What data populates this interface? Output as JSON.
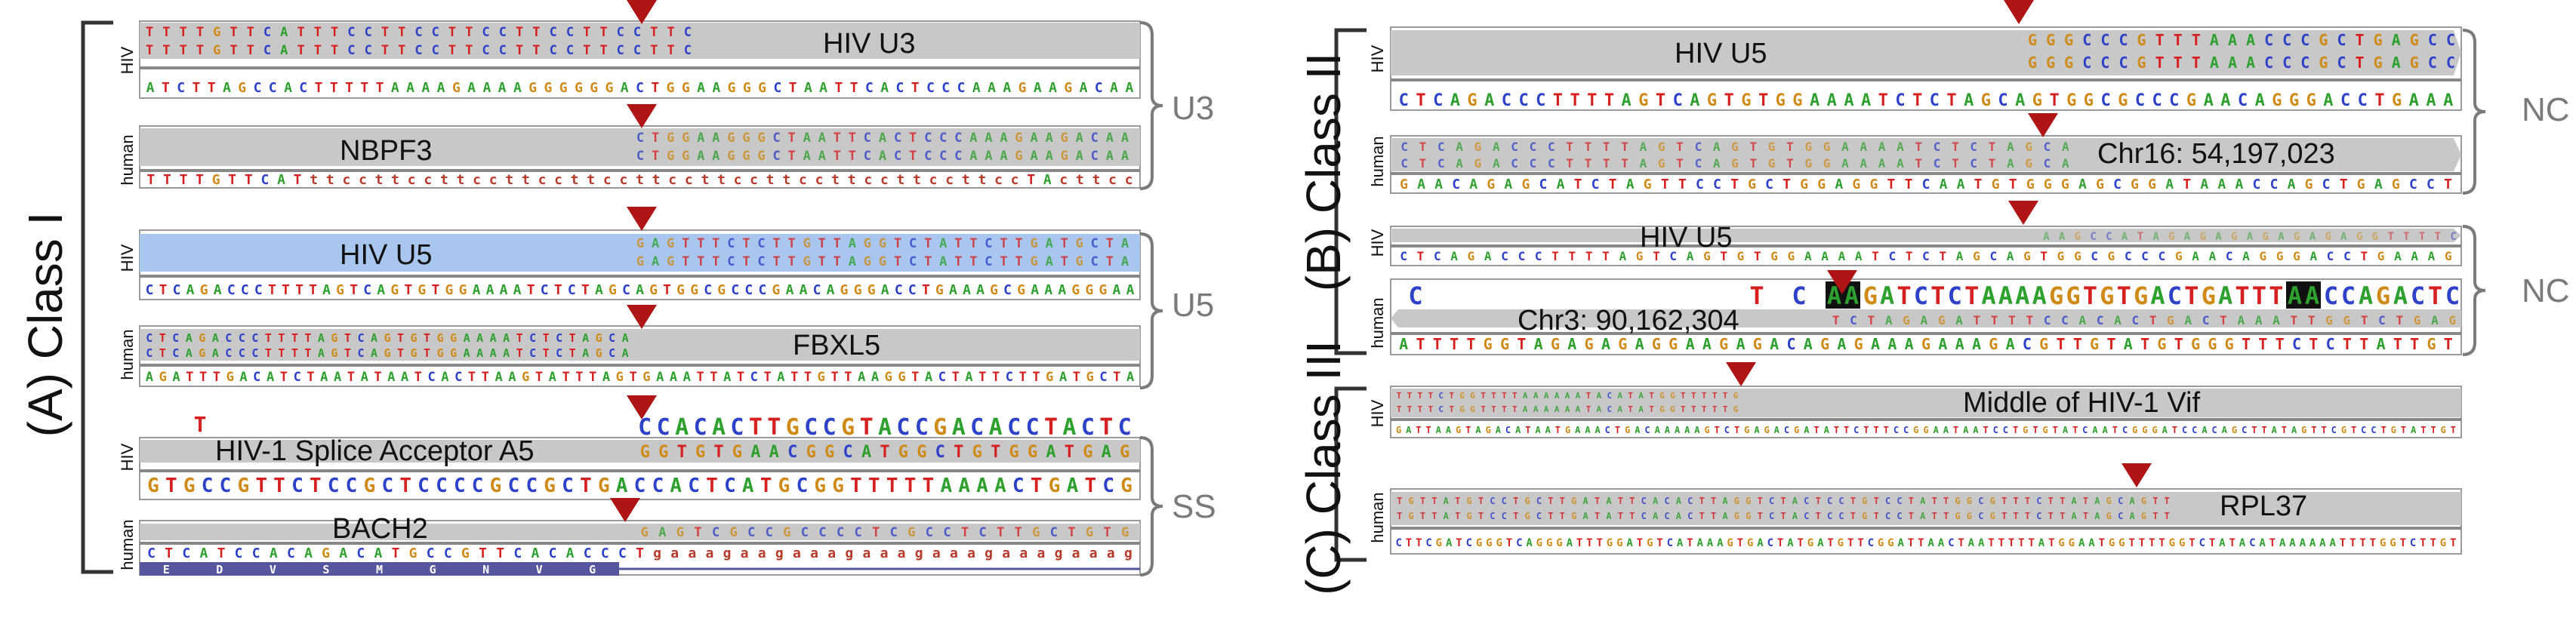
{
  "colors": {
    "A": "#2ea02e",
    "C": "#2d42c8",
    "G": "#d08a18",
    "T": "#d61f1f",
    "lower": "#b83a2a",
    "marker": "#b01515",
    "bracket": "#333333",
    "brace": "#7a7a7a",
    "band": "#c8c8c8",
    "band_blue": "#a9c6ef",
    "black_highlight": "#111111"
  },
  "sections": {
    "a": "(A) Class I",
    "b": "(B) Class II",
    "c": "(C) Class III"
  },
  "groups": {
    "u3": "U3",
    "u5": "U5",
    "ss": "SS",
    "nc1": "NC",
    "nc2": "NC"
  },
  "species": {
    "hiv": "HIV",
    "human": "human"
  },
  "panels": {
    "a1": {
      "label": "HIV U3",
      "read1": "TTTTGTTCATTTCCTTCCTTCCTTCCTTCCTTC",
      "read2": "TTTTGTTCATTTCCTTCCTTCCTTCCTTCCTTC",
      "ref": "ATCTTAGCCACTTTTTAAAAGAAAAGGGGGGACTGGAAGGGCTAATTCACTCCCAAAGAAGACAA"
    },
    "a2": {
      "label": "NBPF3",
      "read1": "CTGGAAGGGCTAATTCACTCCCAAAGAAGACAA",
      "read2": "CTGGAAGGGCTAATTCACTCCCAAAGAAGACAA",
      "ref": "TTTTGTTCATttccttccttccttccttccttccttccttccttccttccttccTActtcc"
    },
    "a3": {
      "label": "HIV U5",
      "read1": "GAGTTTCTCTTGTTAGGTCTATTCTTGATGCTA",
      "read2": "GAGTTTCTCTTGTTAGGTCTATTCTTGATGCTA",
      "ref": "CTCAGACCCTTTTAGTCAGTGTGGAAAATCTCTAGCAGTGGCGCCCGAACAGGGACCTGAAAGCGAAAGGGAA"
    },
    "a4": {
      "label": "FBXL5",
      "read1": "CTCAGACCCTTTTAGTCAGTGTGGAAAATCTCTAGCA",
      "read2": "CTCAGACCCTTTTAGTCAGTGTGGAAAATCTCTAGCA",
      "ref": "AGATTTGACATCTAATATAATCACTTAAGTATTTAGTGAAATTATCTATTGTTAAGGTACTATTCTTGATGCTA"
    },
    "a5": {
      "label": "HIV-1 Splice Acceptor A5",
      "insert": "T",
      "top": "CCACACTTGCCGTACCGACACCTACTC",
      "read": "GGTGTGAACGGCATGGCTGTGGATGAG",
      "ref": "GTGCCGTTCTCCGCTCCCCGCCGCTGACCACTCATGCGGTTTTTAAAACTGATCG"
    },
    "a6": {
      "label": "BACH2",
      "read": "GAGTCGCCGCCCCTCGCCTCTTGCTGTG",
      "ref": "CTCATCCACAGACATGCCGTTCACACCCTgaaagaagaaagaaagaaagaaagaaag",
      "aa": [
        "E",
        "D",
        "V",
        "S",
        "M",
        "G",
        "N",
        "V",
        "G"
      ]
    },
    "b1": {
      "label": "HIV U5",
      "read1": "GGGCCCGTTTAAACCCGCTGAGCC",
      "read2": "GGGCCCGTTTAAACCCGCTGAGCC",
      "ref": "CTCAGACCCTTTTAGTCAGTGTGGAAAATCTCTAGCAGTGGCGCCCGAACAGGGACCTGAAA"
    },
    "b2": {
      "label": "Chr16: 54,197,023",
      "read1": "CTCAGACCCTTTTAGTCAGTGTGGAAAATCTCTAGCA",
      "read2": "CTCAGACCCTTTTAGTCAGTGTGGAAAATCTCTAGCA",
      "ref": "GAACAGAGCATCTAGTTCCTGCTGGAGGTTCAATGTGGGAGCGGATAAACCAGCTGAGCCT"
    },
    "b3": {
      "label": "HIV U5",
      "read": "AAGCCATAGAGAGAGAGAGAGGTTTTC",
      "ref": "CTCAGACCCTTTTAGTCAGTGTGGAAAATCTCTAGCAGTGGCGCCCGAACAGGGACCTGAAAG"
    },
    "b4": {
      "label": "Chr3: 90,162,304",
      "c1": "C",
      "t1": "T",
      "c2": "C",
      "hl1": "AA",
      "mid": "GATCTCTAAAAGGTGTGACTGATTT",
      "hl2": "AA",
      "tail": "CCAGACTC",
      "read": "TCTAGAGATTTTCCACACTGACTAAATTGGTCTGAG",
      "ref": "ATTTTGGTAGAGAGAGGAAGAGACAGAGAAAGAAAGACGTTGTATGTGGGTTTCTCTTATTGT"
    },
    "c1": {
      "label": "Middle of HIV-1 Vif",
      "read1": "TTTTCTGGTTTTAAAAAATACATATGGTTTTTG",
      "read2": "TTTTCTGGTTTTAAAAAATACATATGGTTTTTG",
      "ref": "GATTAAGTAGACATAATGAAACTGACAAAAAGTCTGAGACGATATTCTTTCCGGAATAATCCTGTGTATCAATCGGGATCCACAGCTTATAGTTCGTCCTGTATTGT"
    },
    "c2": {
      "label": "RPL37",
      "read1": "TGTTATGTCCTGCTTGATATTCACACTTAGGTCTACTCCTGTCCTATTGGCGTTTCTTATAGCAGTT",
      "read2": "TGTTATGTCCTGCTTGATATTCACACTTAGGTCTACTCCTGTCCTATTGGCGTTTCTTATAGCAGTT",
      "ref": "CTTCGATCGGGTCAGGGATTTGGATGTCATAAAGTGACTATGATGTTCGGATTAACTAATTTTTATGGAATGGTTTTGGTCTATACATAAAAAATTTTGGTCTTGT"
    }
  }
}
